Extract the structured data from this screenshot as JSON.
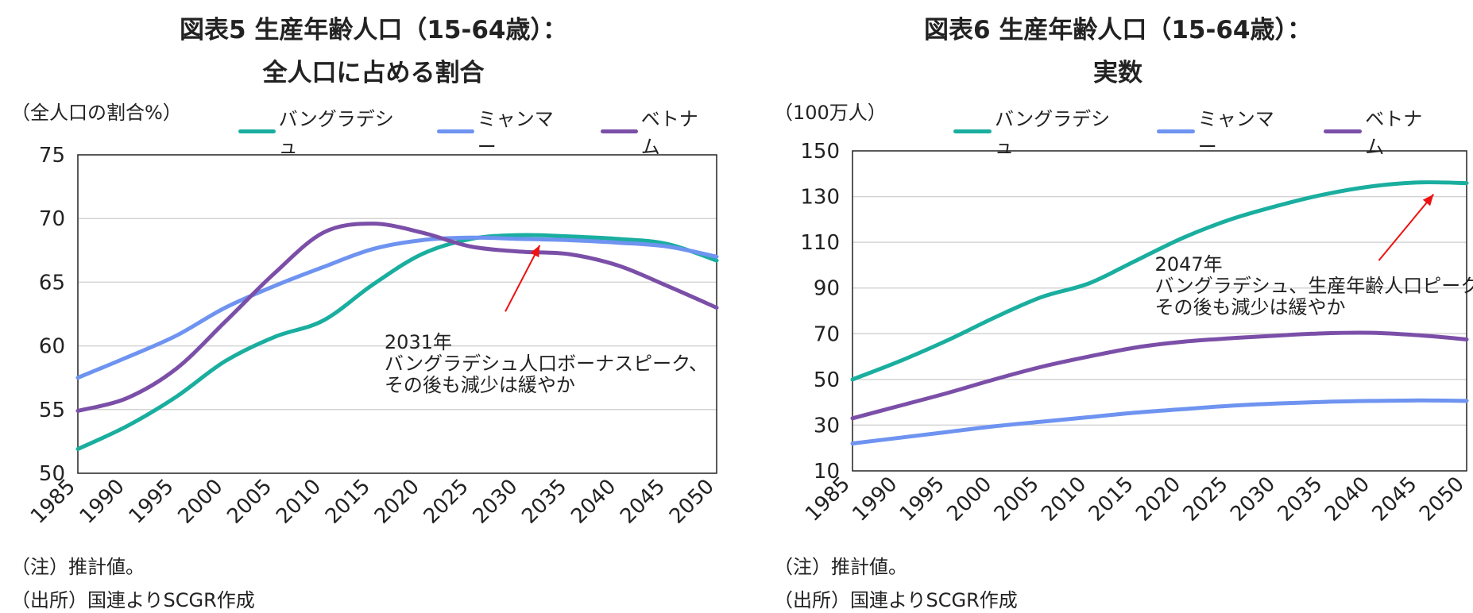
{
  "chart_data": [
    {
      "type": "line",
      "title": "図表5 生産年齢人口（15-64歳）：",
      "title_line2": "全人口に占める割合",
      "unit": "（全人口の割合%）",
      "x": [
        1985,
        1990,
        1995,
        2000,
        2005,
        2010,
        2015,
        2020,
        2025,
        2030,
        2035,
        2040,
        2045,
        2050
      ],
      "ylim": [
        50,
        75
      ],
      "yticks": [
        50,
        55,
        60,
        65,
        70,
        75
      ],
      "grid": true,
      "legend_position": "top",
      "series": [
        {
          "name": "バングラデシュ",
          "color": "#1aae9f",
          "values": [
            51.9,
            53.7,
            56.0,
            58.8,
            60.7,
            62.0,
            64.8,
            67.2,
            68.4,
            68.7,
            68.6,
            68.4,
            68.0,
            66.7
          ]
        },
        {
          "name": "ミャンマー",
          "color": "#6e93f0",
          "values": [
            57.5,
            59.1,
            60.8,
            63.0,
            64.7,
            66.2,
            67.6,
            68.3,
            68.5,
            68.4,
            68.3,
            68.1,
            67.8,
            67.0
          ]
        },
        {
          "name": "ベトナム",
          "color": "#7b4fa8",
          "values": [
            54.9,
            55.9,
            58.2,
            61.9,
            65.7,
            68.9,
            69.6,
            68.9,
            67.8,
            67.4,
            67.2,
            66.3,
            64.7,
            63.0
          ]
        }
      ],
      "annotation": {
        "lines": [
          "2031年",
          "バングラデシュ人口ボーナスピーク、",
          "その後も減少は緩やか"
        ],
        "arrow_from": [
          2028.5,
          62.7
        ],
        "arrow_to": [
          2032.0,
          67.9
        ],
        "arrow_color": "#ee1111",
        "text_at": [
          2016.2,
          59.8
        ]
      }
    },
    {
      "type": "line",
      "title": "図表6 生産年齢人口（15-64歳）：",
      "title_line2": "実数",
      "unit": "（100万人）",
      "x": [
        1985,
        1990,
        1995,
        2000,
        2005,
        2010,
        2015,
        2020,
        2025,
        2030,
        2035,
        2040,
        2045,
        2050
      ],
      "ylim": [
        10,
        150
      ],
      "yticks": [
        10,
        30,
        50,
        70,
        90,
        110,
        130,
        150
      ],
      "grid": true,
      "legend_position": "top",
      "series": [
        {
          "name": "バングラデシュ",
          "color": "#1aae9f",
          "values": [
            50,
            58,
            67,
            77,
            86,
            92,
            102,
            112,
            120,
            126,
            131,
            134.5,
            136.2,
            135.9
          ]
        },
        {
          "name": "ミャンマー",
          "color": "#6e93f0",
          "values": [
            22,
            24.5,
            27,
            29.5,
            31.5,
            33.5,
            35.5,
            37,
            38.5,
            39.5,
            40.2,
            40.6,
            40.8,
            40.6
          ]
        },
        {
          "name": "ベトナム",
          "color": "#7b4fa8",
          "values": [
            33,
            38.5,
            44,
            50,
            55.5,
            60,
            64,
            66.5,
            68,
            69.2,
            70.2,
            70.4,
            69.3,
            67.5
          ]
        }
      ],
      "annotation": {
        "lines": [
          "2047年",
          "バングラデシュ、生産年齢人口ピーク",
          "その後も減少は緩やか"
        ],
        "arrow_from": [
          2040.7,
          102
        ],
        "arrow_to": [
          2046.5,
          131
        ],
        "arrow_color": "#ee1111",
        "text_at": [
          2017.0,
          97.5
        ]
      }
    }
  ],
  "notes": {
    "left": [
      "（注）推計値。",
      "（出所）国連よりSCGR作成"
    ],
    "right": [
      "（注）推計値。",
      "（出所）国連よりSCGR作成"
    ]
  }
}
